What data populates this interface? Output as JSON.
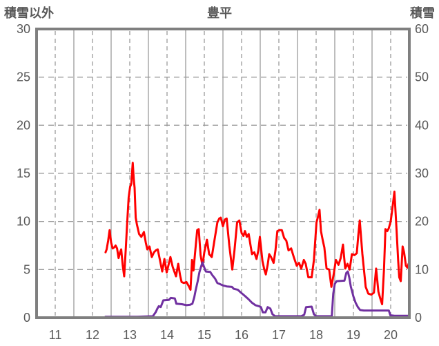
{
  "header": {
    "left_axis_title": "積雪以外",
    "chart_title": "豊平",
    "right_axis_title": "積雪"
  },
  "colors": {
    "series_red": "#FF0000",
    "series_purple": "#7030A0",
    "grid": "#9A9A9A",
    "border": "#7F7F7F",
    "text": "#595959",
    "background": "#FFFFFF"
  },
  "chart_data": {
    "type": "line",
    "title": "豊平",
    "left_axis": {
      "label": "積雪以外",
      "ticks": [
        0,
        5,
        10,
        15,
        20,
        25,
        30
      ],
      "range": [
        0,
        30
      ]
    },
    "right_axis": {
      "label": "積雪",
      "ticks": [
        0,
        10,
        20,
        30,
        40,
        50,
        60
      ],
      "range": [
        0,
        60
      ]
    },
    "x_axis": {
      "ticks": [
        11,
        12,
        13,
        14,
        15,
        16,
        17,
        18,
        19,
        20
      ],
      "range": [
        10.5,
        20.5
      ]
    },
    "grid": {
      "h_dashed": [
        5,
        10,
        15,
        20,
        25
      ],
      "v_solid": [
        11.5,
        12.5,
        13.5,
        14.5,
        15.5,
        16.5,
        17.5,
        18.5,
        19.5
      ],
      "v_dashed": [
        11,
        12,
        13,
        14,
        15,
        16,
        17,
        18,
        19,
        20
      ]
    },
    "legend": "none",
    "series": [
      {
        "name": "積雪以外",
        "axis": "left",
        "color": "#FF0000",
        "points": [
          [
            12.35,
            6.8
          ],
          [
            12.38,
            7.1
          ],
          [
            12.42,
            8.0
          ],
          [
            12.46,
            9.1
          ],
          [
            12.5,
            7.8
          ],
          [
            12.54,
            7.2
          ],
          [
            12.58,
            7.3
          ],
          [
            12.62,
            7.5
          ],
          [
            12.66,
            7.2
          ],
          [
            12.7,
            6.2
          ],
          [
            12.74,
            6.8
          ],
          [
            12.77,
            7.1
          ],
          [
            12.81,
            5.5
          ],
          [
            12.85,
            4.3
          ],
          [
            12.89,
            7.0
          ],
          [
            12.93,
            9.8
          ],
          [
            12.97,
            12.5
          ],
          [
            13.01,
            13.6
          ],
          [
            13.04,
            13.9
          ],
          [
            13.08,
            16.1
          ],
          [
            13.11,
            14.3
          ],
          [
            13.13,
            13.5
          ],
          [
            13.16,
            10.4
          ],
          [
            13.19,
            9.7
          ],
          [
            13.25,
            8.7
          ],
          [
            13.31,
            8.4
          ],
          [
            13.38,
            8.9
          ],
          [
            13.43,
            7.8
          ],
          [
            13.47,
            7.1
          ],
          [
            13.53,
            7.4
          ],
          [
            13.59,
            6.3
          ],
          [
            13.65,
            6.8
          ],
          [
            13.7,
            7.0
          ],
          [
            13.75,
            7.1
          ],
          [
            13.81,
            6.0
          ],
          [
            13.87,
            4.8
          ],
          [
            13.93,
            6.1
          ],
          [
            13.99,
            4.7
          ],
          [
            14.04,
            5.5
          ],
          [
            14.09,
            6.3
          ],
          [
            14.15,
            5.3
          ],
          [
            14.24,
            4.3
          ],
          [
            14.3,
            5.6
          ],
          [
            14.35,
            4.4
          ],
          [
            14.39,
            3.7
          ],
          [
            14.45,
            3.6
          ],
          [
            14.52,
            3.7
          ],
          [
            14.58,
            3.3
          ],
          [
            14.63,
            2.9
          ],
          [
            14.67,
            6.0
          ],
          [
            14.71,
            4.9
          ],
          [
            14.77,
            7.5
          ],
          [
            14.81,
            9.1
          ],
          [
            14.85,
            9.2
          ],
          [
            14.9,
            6.5
          ],
          [
            14.95,
            5.4
          ],
          [
            15.0,
            6.8
          ],
          [
            15.07,
            8.1
          ],
          [
            15.13,
            6.6
          ],
          [
            15.2,
            6.3
          ],
          [
            15.27,
            8.0
          ],
          [
            15.35,
            9.9
          ],
          [
            15.4,
            10.3
          ],
          [
            15.44,
            10.4
          ],
          [
            15.5,
            9.5
          ],
          [
            15.55,
            10.2
          ],
          [
            15.6,
            10.3
          ],
          [
            15.67,
            7.5
          ],
          [
            15.75,
            5.0
          ],
          [
            15.81,
            7.0
          ],
          [
            15.88,
            9.9
          ],
          [
            15.94,
            10.1
          ],
          [
            16.0,
            8.8
          ],
          [
            16.05,
            8.5
          ],
          [
            16.09,
            9.0
          ],
          [
            16.14,
            8.4
          ],
          [
            16.19,
            8.7
          ],
          [
            16.24,
            7.5
          ],
          [
            16.28,
            6.6
          ],
          [
            16.34,
            6.8
          ],
          [
            16.4,
            6.1
          ],
          [
            16.45,
            7.0
          ],
          [
            16.49,
            8.4
          ],
          [
            16.56,
            5.9
          ],
          [
            16.61,
            5.0
          ],
          [
            16.65,
            4.5
          ],
          [
            16.7,
            5.5
          ],
          [
            16.74,
            6.6
          ],
          [
            16.79,
            6.3
          ],
          [
            16.86,
            5.7
          ],
          [
            16.91,
            7.0
          ],
          [
            16.96,
            9.0
          ],
          [
            17.02,
            9.1
          ],
          [
            17.08,
            9.1
          ],
          [
            17.14,
            8.3
          ],
          [
            17.2,
            8.0
          ],
          [
            17.26,
            7.0
          ],
          [
            17.33,
            7.2
          ],
          [
            17.4,
            6.3
          ],
          [
            17.48,
            5.4
          ],
          [
            17.54,
            5.7
          ],
          [
            17.6,
            5.1
          ],
          [
            17.67,
            6.0
          ],
          [
            17.72,
            5.6
          ],
          [
            17.79,
            4.2
          ],
          [
            17.88,
            4.2
          ],
          [
            17.94,
            6.0
          ],
          [
            18.01,
            9.9
          ],
          [
            18.05,
            10.5
          ],
          [
            18.09,
            11.2
          ],
          [
            18.13,
            9.0
          ],
          [
            18.18,
            8.0
          ],
          [
            18.22,
            7.3
          ],
          [
            18.28,
            5.1
          ],
          [
            18.35,
            5.0
          ],
          [
            18.41,
            3.2
          ],
          [
            18.47,
            4.5
          ],
          [
            18.53,
            6.0
          ],
          [
            18.6,
            5.5
          ],
          [
            18.66,
            6.2
          ],
          [
            18.72,
            7.6
          ],
          [
            18.78,
            5.1
          ],
          [
            18.84,
            5.6
          ],
          [
            18.9,
            5.0
          ],
          [
            18.96,
            6.6
          ],
          [
            19.03,
            6.5
          ],
          [
            19.09,
            6.7
          ],
          [
            19.13,
            8.5
          ],
          [
            19.17,
            10.1
          ],
          [
            19.24,
            6.6
          ],
          [
            19.33,
            3.2
          ],
          [
            19.4,
            2.5
          ],
          [
            19.48,
            2.4
          ],
          [
            19.55,
            2.6
          ],
          [
            19.61,
            5.1
          ],
          [
            19.67,
            2.7
          ],
          [
            19.72,
            2.0
          ],
          [
            19.77,
            1.4
          ],
          [
            19.82,
            5.0
          ],
          [
            19.86,
            9.2
          ],
          [
            19.91,
            9.0
          ],
          [
            19.95,
            9.3
          ],
          [
            20.0,
            10.0
          ],
          [
            20.04,
            11.2
          ],
          [
            20.1,
            13.1
          ],
          [
            20.16,
            9.0
          ],
          [
            20.2,
            6.0
          ],
          [
            20.23,
            4.2
          ],
          [
            20.27,
            3.8
          ],
          [
            20.32,
            7.4
          ],
          [
            20.36,
            6.8
          ],
          [
            20.41,
            5.4
          ],
          [
            20.45,
            5.2
          ],
          [
            20.48,
            5.6
          ]
        ]
      },
      {
        "name": "積雪",
        "axis": "right",
        "color": "#7030A0",
        "points": [
          [
            12.35,
            0.2
          ],
          [
            13.2,
            0.2
          ],
          [
            13.62,
            0.3
          ],
          [
            13.7,
            1.2
          ],
          [
            13.74,
            1.9
          ],
          [
            13.78,
            2.4
          ],
          [
            13.83,
            2.2
          ],
          [
            13.9,
            3.6
          ],
          [
            14.05,
            3.7
          ],
          [
            14.1,
            4.1
          ],
          [
            14.21,
            4.0
          ],
          [
            14.25,
            2.9
          ],
          [
            14.4,
            2.8
          ],
          [
            14.52,
            2.6
          ],
          [
            14.62,
            2.7
          ],
          [
            14.68,
            2.9
          ],
          [
            14.73,
            4.2
          ],
          [
            14.77,
            5.8
          ],
          [
            14.82,
            7.5
          ],
          [
            14.87,
            9.5
          ],
          [
            14.92,
            10.8
          ],
          [
            14.95,
            11.5
          ],
          [
            14.99,
            10.6
          ],
          [
            15.04,
            9.6
          ],
          [
            15.16,
            9.5
          ],
          [
            15.21,
            8.9
          ],
          [
            15.29,
            8.1
          ],
          [
            15.35,
            7.2
          ],
          [
            15.5,
            6.7
          ],
          [
            15.6,
            6.5
          ],
          [
            15.74,
            6.4
          ],
          [
            15.79,
            6.0
          ],
          [
            15.9,
            5.8
          ],
          [
            15.97,
            5.3
          ],
          [
            16.09,
            4.5
          ],
          [
            16.19,
            3.8
          ],
          [
            16.28,
            3.1
          ],
          [
            16.37,
            2.6
          ],
          [
            16.46,
            2.4
          ],
          [
            16.52,
            2.2
          ],
          [
            16.57,
            1.1
          ],
          [
            16.64,
            1.1
          ],
          [
            16.7,
            2.2
          ],
          [
            16.77,
            1.9
          ],
          [
            16.83,
            0.7
          ],
          [
            16.9,
            0.3
          ],
          [
            17.6,
            0.3
          ],
          [
            17.68,
            0.6
          ],
          [
            17.73,
            2.2
          ],
          [
            17.88,
            2.3
          ],
          [
            17.94,
            0.7
          ],
          [
            18.0,
            0.3
          ],
          [
            18.42,
            0.3
          ],
          [
            18.46,
            5.0
          ],
          [
            18.5,
            7.0
          ],
          [
            18.55,
            7.6
          ],
          [
            18.76,
            7.7
          ],
          [
            18.81,
            9.3
          ],
          [
            18.85,
            9.6
          ],
          [
            18.89,
            8.3
          ],
          [
            18.93,
            6.5
          ],
          [
            19.0,
            4.4
          ],
          [
            19.06,
            3.1
          ],
          [
            19.12,
            2.2
          ],
          [
            19.18,
            1.6
          ],
          [
            19.28,
            1.5
          ],
          [
            19.95,
            1.5
          ],
          [
            19.99,
            0.5
          ],
          [
            20.1,
            0.4
          ],
          [
            20.48,
            0.4
          ]
        ]
      }
    ]
  }
}
